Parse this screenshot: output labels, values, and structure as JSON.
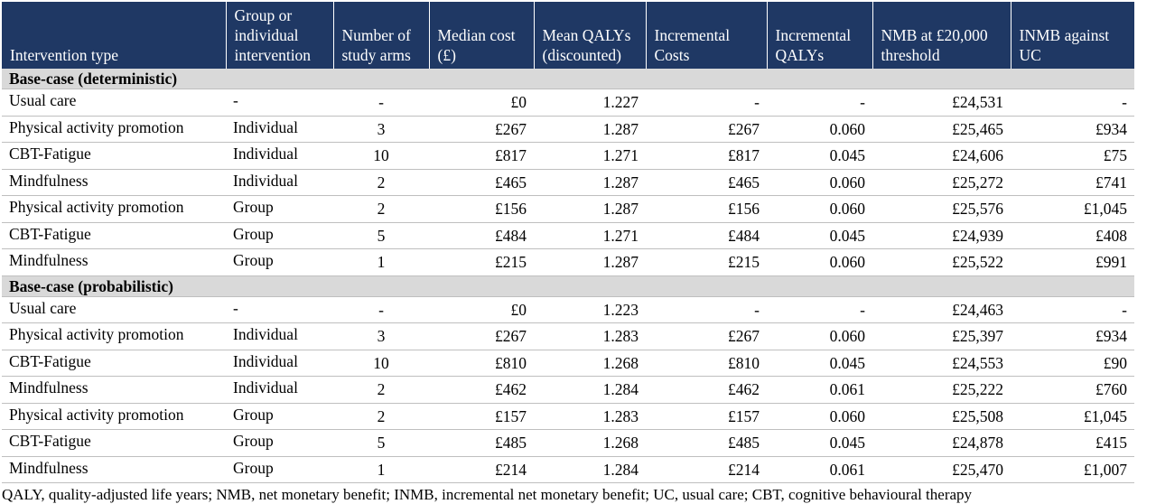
{
  "table": {
    "headers": [
      "Intervention type",
      "Group or individual intervention",
      "Number of study arms",
      "Median cost (£)",
      "Mean QALYs (discounted)",
      "Incremental Costs",
      "Incremental QALYs",
      "NMB at £20,000 threshold",
      "INMB against UC"
    ],
    "sections": [
      {
        "title": "Base-case (deterministic)",
        "rows": [
          [
            "Usual care",
            "-",
            "-",
            "£0",
            "1.227",
            "-",
            "-",
            "£24,531",
            "-"
          ],
          [
            "Physical activity promotion",
            "Individual",
            "3",
            "£267",
            "1.287",
            "£267",
            "0.060",
            "£25,465",
            "£934"
          ],
          [
            "CBT-Fatigue",
            "Individual",
            "10",
            "£817",
            "1.271",
            "£817",
            "0.045",
            "£24,606",
            "£75"
          ],
          [
            "Mindfulness",
            "Individual",
            "2",
            "£465",
            "1.287",
            "£465",
            "0.060",
            "£25,272",
            "£741"
          ],
          [
            "Physical activity promotion",
            "Group",
            "2",
            "£156",
            "1.287",
            "£156",
            "0.060",
            "£25,576",
            "£1,045"
          ],
          [
            "CBT-Fatigue",
            "Group",
            "5",
            "£484",
            "1.271",
            "£484",
            "0.045",
            "£24,939",
            "£408"
          ],
          [
            "Mindfulness",
            "Group",
            "1",
            "£215",
            "1.287",
            "£215",
            "0.060",
            "£25,522",
            "£991"
          ]
        ]
      },
      {
        "title": "Base-case (probabilistic)",
        "rows": [
          [
            "Usual care",
            "-",
            "-",
            "£0",
            "1.223",
            "-",
            "-",
            "£24,463",
            "-"
          ],
          [
            "Physical activity promotion",
            "Individual",
            "3",
            "£267",
            "1.283",
            "£267",
            "0.060",
            "£25,397",
            "£934"
          ],
          [
            "CBT-Fatigue",
            "Individual",
            "10",
            "£810",
            "1.268",
            "£810",
            "0.045",
            "£24,553",
            "£90"
          ],
          [
            "Mindfulness",
            "Individual",
            "2",
            "£462",
            "1.284",
            "£462",
            "0.061",
            "£25,222",
            "£760"
          ],
          [
            "Physical activity promotion",
            "Group",
            "2",
            "£157",
            "1.283",
            "£157",
            "0.060",
            "£25,508",
            "£1,045"
          ],
          [
            "CBT-Fatigue",
            "Group",
            "5",
            "£485",
            "1.268",
            "£485",
            "0.045",
            "£24,878",
            "£415"
          ],
          [
            "Mindfulness",
            "Group",
            "1",
            "£214",
            "1.284",
            "£214",
            "0.061",
            "£25,470",
            "£1,007"
          ]
        ]
      }
    ]
  },
  "footnote": "QALY, quality-adjusted life years; NMB, net monetary benefit; INMB, incremental net monetary benefit; UC, usual care; CBT, cognitive behavioural therapy",
  "colors": {
    "header_bg": "#1f3864",
    "header_text": "#ffffff",
    "section_bg": "#d9d9d9",
    "row_rule": "#bfbfbf"
  }
}
